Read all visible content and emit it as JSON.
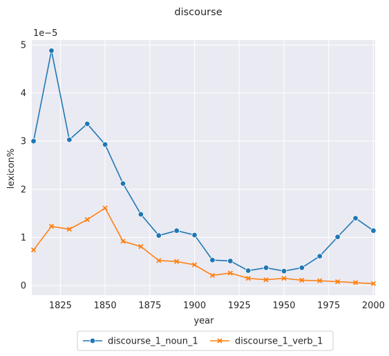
{
  "chart_data": {
    "type": "line",
    "title": "discourse",
    "xlabel": "year",
    "ylabel": "lexicon%",
    "y_scale_note": "1e−5",
    "x": [
      1810,
      1820,
      1830,
      1840,
      1850,
      1860,
      1870,
      1880,
      1890,
      1900,
      1910,
      1920,
      1930,
      1940,
      1950,
      1960,
      1970,
      1980,
      1990,
      2000
    ],
    "xlim": [
      1809,
      2001
    ],
    "ylim": [
      -0.2,
      5.1
    ],
    "x_ticks": [
      1825,
      1850,
      1875,
      1900,
      1925,
      1950,
      1975,
      2000
    ],
    "x_tick_labels": [
      "1825",
      "1850",
      "1875",
      "1900",
      "1925",
      "1950",
      "1975",
      "2000"
    ],
    "y_ticks": [
      0,
      1,
      2,
      3,
      4,
      5
    ],
    "y_tick_labels": [
      "0",
      "1",
      "2",
      "3",
      "4",
      "5"
    ],
    "grid": true,
    "legend_position": "bottom-center",
    "series": [
      {
        "name": "discourse_1_noun_1",
        "color": "#1f77b4",
        "marker": "circle",
        "values": [
          3.0,
          4.88,
          3.03,
          3.36,
          2.93,
          2.12,
          1.48,
          1.04,
          1.14,
          1.05,
          0.53,
          0.51,
          0.31,
          0.37,
          0.3,
          0.37,
          0.61,
          1.01,
          1.4,
          1.14
        ]
      },
      {
        "name": "discourse_1_verb_1",
        "color": "#ff7f0e",
        "marker": "x",
        "values": [
          0.74,
          1.23,
          1.17,
          1.37,
          1.61,
          0.92,
          0.81,
          0.52,
          0.5,
          0.43,
          0.21,
          0.26,
          0.15,
          0.12,
          0.15,
          0.11,
          0.1,
          0.08,
          0.06,
          0.04
        ]
      }
    ]
  }
}
